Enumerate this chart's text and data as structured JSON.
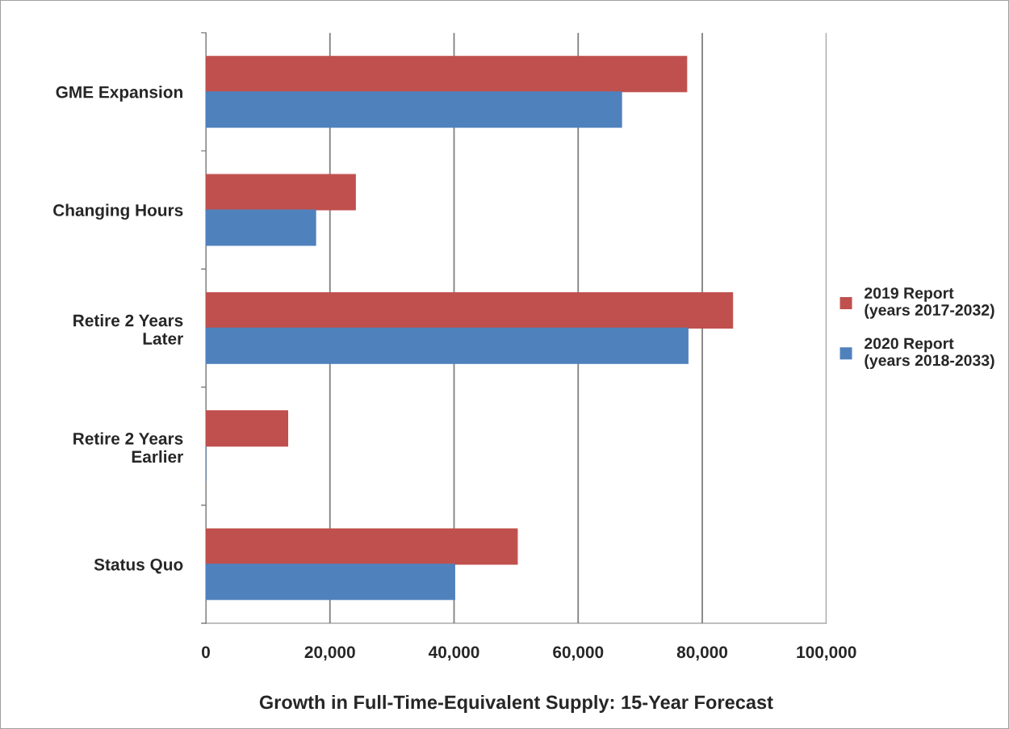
{
  "chart_data": {
    "type": "bar",
    "orientation": "horizontal",
    "xlabel": "Growth in Full-Time-Equivalent Supply: 15-Year Forecast",
    "categories": [
      "GME Expansion",
      "Changing Hours",
      "Retire 2 Years\nLater",
      "Retire 2 Years\nEarlier",
      "Status Quo"
    ],
    "series": [
      {
        "name": "2019 Report\n(years 2017-2032)",
        "color": "#c0504d",
        "values": [
          77500,
          24100,
          84900,
          13200,
          50200
        ]
      },
      {
        "name": "2020 Report\n(years 2018-2033)",
        "color": "#4f81bd",
        "values": [
          67000,
          17700,
          77700,
          0,
          40100
        ]
      }
    ],
    "xlim": [
      0,
      100000
    ],
    "xticks": [
      0,
      {
        "value": 20000,
        "label": "20,000"
      },
      {
        "value": 40000,
        "label": "40,000"
      },
      {
        "value": 60000,
        "label": "60,000"
      },
      {
        "value": 80000,
        "label": "80,000"
      },
      {
        "value": 100000,
        "label": "100,000"
      }
    ],
    "grid": "x",
    "legend": "right"
  }
}
